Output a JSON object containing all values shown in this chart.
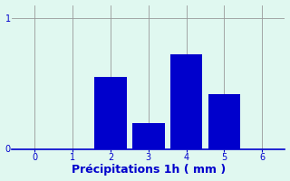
{
  "categories": [
    2,
    3,
    4,
    5
  ],
  "values": [
    0.55,
    0.2,
    0.72,
    0.42
  ],
  "bar_color": "#0000cc",
  "background_color": "#e0f8f0",
  "plot_bg_color": "#e0f8f0",
  "xlabel": "Précipitations 1h ( mm )",
  "xlabel_color": "#0000cc",
  "tick_color": "#0000cc",
  "ylim": [
    0,
    1.1
  ],
  "xlim": [
    -0.6,
    6.6
  ],
  "yticks": [
    0,
    1
  ],
  "xticks": [
    0,
    1,
    2,
    3,
    4,
    5,
    6
  ],
  "grid_color": "#999999",
  "bar_width": 0.85,
  "xlabel_fontsize": 9
}
